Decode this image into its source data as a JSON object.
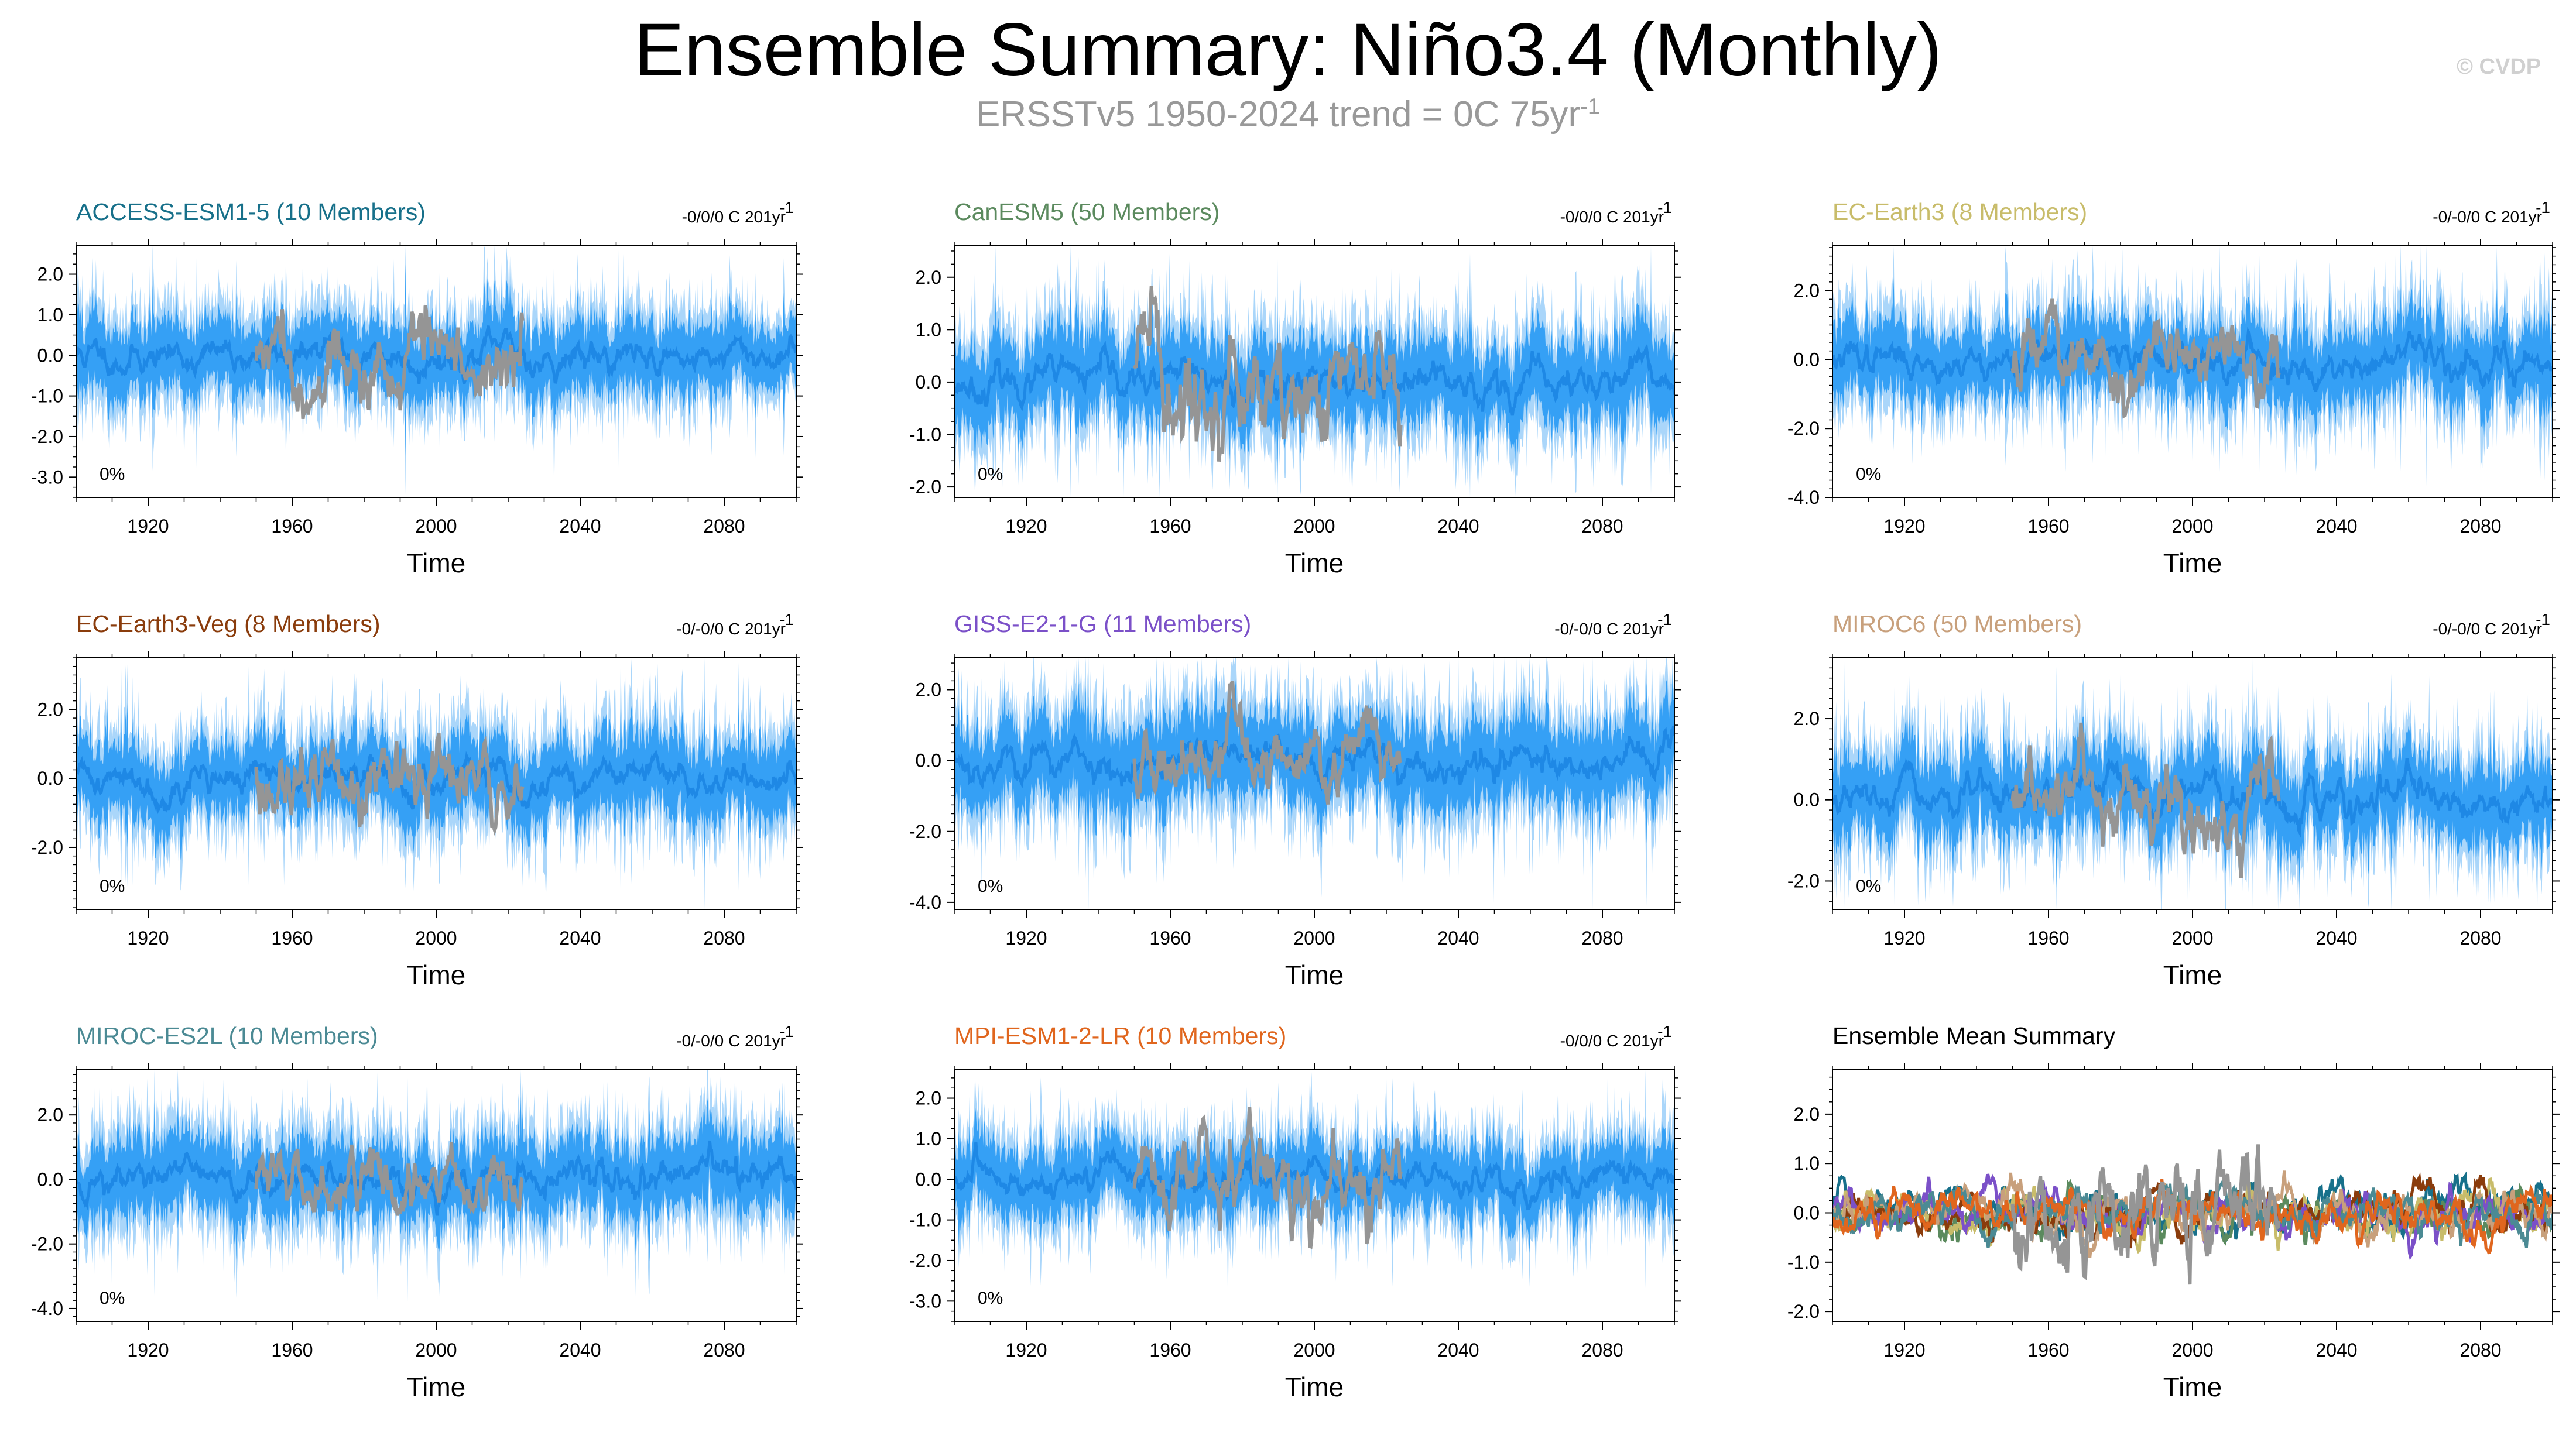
{
  "header": {
    "title": "Ensemble Summary: Niño3.4 (Monthly)",
    "subtitle_main": "ERSSTv5 1950-2024 trend = 0C 75yr",
    "subtitle_sup": "-1",
    "watermark": "© CVDP"
  },
  "colors": {
    "obs": "#959595",
    "ens_mean": "#1e88e5",
    "ens_spread": "#2196f3",
    "ens_range": "#64b5f6"
  },
  "chart_data": [
    {
      "id": "p1",
      "type": "line",
      "title": "ACCESS-ESM1-5 (10 Members)",
      "title_color": "#17708a",
      "trend_text": "-0/0/0 C 201yr",
      "trend_sup": "-1",
      "pct_label": "0%",
      "xlabel": "Time",
      "x_ticks": [
        1920,
        1960,
        2000,
        2040,
        2080
      ],
      "xlim": [
        1900,
        2100
      ],
      "ylim": [
        -3.5,
        2.7
      ],
      "y_ticks": [
        2.0,
        1.0,
        0.0,
        -1.0,
        -2.0,
        -3.0
      ],
      "y_tick_labels": [
        "2.0",
        "1.0",
        "0.0",
        "-1.0",
        "-2.0",
        "-3.0"
      ],
      "amp": 0.9,
      "obs_amp": 1.0,
      "obs_range": [
        1950,
        2024
      ],
      "seed": 11
    },
    {
      "id": "p2",
      "type": "line",
      "title": "CanESM5 (50 Members)",
      "title_color": "#5b8a5e",
      "trend_text": "-0/0/0 C 201yr",
      "trend_sup": "-1",
      "pct_label": "0%",
      "xlabel": "Time",
      "x_ticks": [
        1920,
        1960,
        2000,
        2040,
        2080
      ],
      "xlim": [
        1900,
        2100
      ],
      "ylim": [
        -2.2,
        2.6
      ],
      "y_ticks": [
        2.0,
        1.0,
        0.0,
        -1.0,
        -2.0
      ],
      "y_tick_labels": [
        "2.0",
        "1.0",
        "0.0",
        "-1.0",
        "-2.0"
      ],
      "amp": 0.8,
      "obs_amp": 1.0,
      "obs_range": [
        1950,
        2024
      ],
      "seed": 23
    },
    {
      "id": "p3",
      "type": "line",
      "title": "EC-Earth3 (8 Members)",
      "title_color": "#c8bc6a",
      "trend_text": "-0/-0/0 C 201yr",
      "trend_sup": "-1",
      "pct_label": "0%",
      "xlabel": "Time",
      "x_ticks": [
        1920,
        1960,
        2000,
        2040,
        2080
      ],
      "xlim": [
        1900,
        2100
      ],
      "ylim": [
        -4.0,
        3.3
      ],
      "y_ticks": [
        2.0,
        0.0,
        -2.0,
        -4.0
      ],
      "y_tick_labels": [
        "2.0",
        "0.0",
        "-2.0",
        "-4.0"
      ],
      "amp": 1.1,
      "obs_amp": 1.0,
      "obs_range": [
        1950,
        2024
      ],
      "seed": 37
    },
    {
      "id": "p4",
      "type": "line",
      "title": "EC-Earth3-Veg (8 Members)",
      "title_color": "#8a3c0c",
      "trend_text": "-0/-0/0 C 201yr",
      "trend_sup": "-1",
      "pct_label": "0%",
      "xlabel": "Time",
      "x_ticks": [
        1920,
        1960,
        2000,
        2040,
        2080
      ],
      "xlim": [
        1900,
        2100
      ],
      "ylim": [
        -3.8,
        3.5
      ],
      "y_ticks": [
        2.0,
        0.0,
        -2.0
      ],
      "y_tick_labels": [
        "2.0",
        "0.0",
        "-2.0"
      ],
      "amp": 1.1,
      "obs_amp": 1.0,
      "obs_range": [
        1950,
        2024
      ],
      "seed": 41
    },
    {
      "id": "p5",
      "type": "line",
      "title": "GISS-E2-1-G (11 Members)",
      "title_color": "#7b50c8",
      "trend_text": "-0/-0/0 C 201yr",
      "trend_sup": "-1",
      "pct_label": "0%",
      "xlabel": "Time",
      "x_ticks": [
        1920,
        1960,
        2000,
        2040,
        2080
      ],
      "xlim": [
        1900,
        2100
      ],
      "ylim": [
        -4.2,
        2.9
      ],
      "y_ticks": [
        2.0,
        0.0,
        -2.0,
        -4.0
      ],
      "y_tick_labels": [
        "2.0",
        "0.0",
        "-2.0",
        "-4.0"
      ],
      "amp": 1.2,
      "obs_amp": 1.0,
      "obs_range": [
        1950,
        2024
      ],
      "seed": 53
    },
    {
      "id": "p6",
      "type": "line",
      "title": "MIROC6 (50 Members)",
      "title_color": "#c8a07c",
      "trend_text": "-0/-0/0 C 201yr",
      "trend_sup": "-1",
      "pct_label": "0%",
      "xlabel": "Time",
      "x_ticks": [
        1920,
        1960,
        2000,
        2040,
        2080
      ],
      "xlim": [
        1900,
        2100
      ],
      "ylim": [
        -2.7,
        3.5
      ],
      "y_ticks": [
        2.0,
        0.0,
        -2.0
      ],
      "y_tick_labels": [
        "2.0",
        "0.0",
        "-2.0"
      ],
      "amp": 1.0,
      "obs_amp": 1.0,
      "obs_range": [
        1950,
        2024
      ],
      "seed": 67
    },
    {
      "id": "p7",
      "type": "line",
      "title": "MIROC-ES2L (10 Members)",
      "title_color": "#4b8a94",
      "trend_text": "-0/-0/0 C 201yr",
      "trend_sup": "-1",
      "pct_label": "0%",
      "xlabel": "Time",
      "x_ticks": [
        1920,
        1960,
        2000,
        2040,
        2080
      ],
      "xlim": [
        1900,
        2100
      ],
      "ylim": [
        -4.4,
        3.4
      ],
      "y_ticks": [
        2.0,
        0.0,
        -2.0,
        -4.0
      ],
      "y_tick_labels": [
        "2.0",
        "0.0",
        "-2.0",
        "-4.0"
      ],
      "amp": 1.2,
      "obs_amp": 1.0,
      "obs_range": [
        1950,
        2024
      ],
      "seed": 71
    },
    {
      "id": "p8",
      "type": "line",
      "title": "MPI-ESM1-2-LR (10 Members)",
      "title_color": "#e0661e",
      "trend_text": "-0/0/0 C 201yr",
      "trend_sup": "-1",
      "pct_label": "0%",
      "xlabel": "Time",
      "x_ticks": [
        1920,
        1960,
        2000,
        2040,
        2080
      ],
      "xlim": [
        1900,
        2100
      ],
      "ylim": [
        -3.5,
        2.7
      ],
      "y_ticks": [
        2.0,
        1.0,
        0.0,
        -1.0,
        -2.0,
        -3.0
      ],
      "y_tick_labels": [
        "2.0",
        "1.0",
        "0.0",
        "-1.0",
        "-2.0",
        "-3.0"
      ],
      "amp": 0.85,
      "obs_amp": 1.0,
      "obs_range": [
        1950,
        2024
      ],
      "seed": 83
    },
    {
      "id": "p9",
      "type": "line",
      "title": "Ensemble Mean Summary",
      "title_color": "#000000",
      "trend_text": "",
      "trend_sup": "",
      "pct_label": "",
      "xlabel": "Time",
      "x_ticks": [
        1920,
        1960,
        2000,
        2040,
        2080
      ],
      "xlim": [
        1900,
        2100
      ],
      "ylim": [
        -2.2,
        2.9
      ],
      "y_ticks": [
        2.0,
        1.0,
        0.0,
        -1.0,
        -2.0
      ],
      "y_tick_labels": [
        "2.0",
        "1.0",
        "0.0",
        "-1.0",
        "-2.0"
      ],
      "amp": 0.5,
      "obs_amp": 1.0,
      "obs_range": [
        1950,
        2024
      ],
      "seed": 97,
      "series": [
        {
          "name": "ACCESS-ESM1-5",
          "color": "#17708a"
        },
        {
          "name": "CanESM5",
          "color": "#5b8a5e"
        },
        {
          "name": "EC-Earth3",
          "color": "#c8bc6a"
        },
        {
          "name": "EC-Earth3-Veg",
          "color": "#8a3c0c"
        },
        {
          "name": "GISS-E2-1-G",
          "color": "#7b50c8"
        },
        {
          "name": "MIROC6",
          "color": "#c8a07c"
        },
        {
          "name": "MIROC-ES2L",
          "color": "#4b8a94"
        },
        {
          "name": "MPI-ESM1-2-LR",
          "color": "#e0661e"
        }
      ]
    }
  ]
}
